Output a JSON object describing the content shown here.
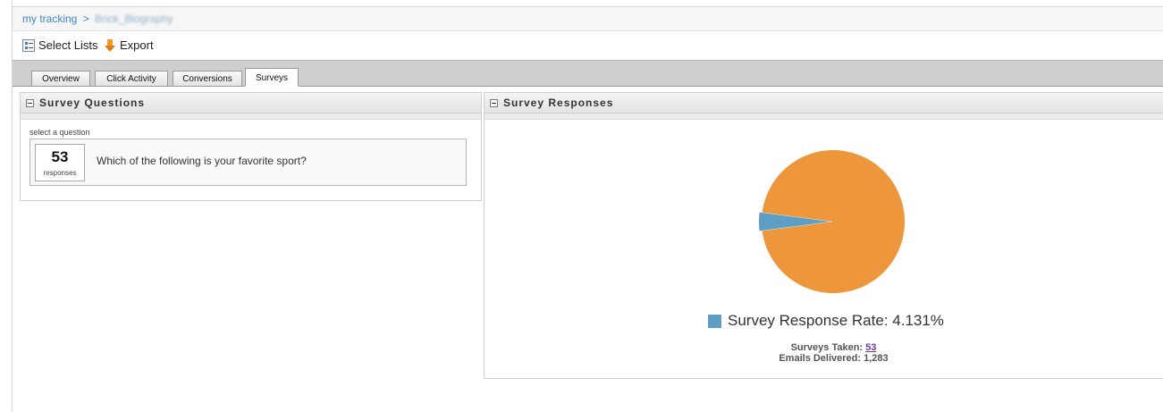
{
  "breadcrumb": {
    "root": "my tracking",
    "separator": ">",
    "current": "Brick_Biography"
  },
  "toolbar": {
    "select_lists": "Select Lists",
    "export": "Export"
  },
  "tabs": [
    {
      "label": "Overview",
      "active": false
    },
    {
      "label": "Click Activity",
      "active": false
    },
    {
      "label": "Conversions",
      "active": false
    },
    {
      "label": "Surveys",
      "active": true
    }
  ],
  "survey_questions": {
    "title": "Survey Questions",
    "select_label": "select a question",
    "question": {
      "response_count": "53",
      "response_label": "responses",
      "text": "Which of the following is your favorite sport?"
    }
  },
  "survey_responses": {
    "title": "Survey Responses",
    "legend_label": "Survey Response Rate: 4.131%",
    "surveys_taken_label": "Surveys Taken:",
    "surveys_taken_value": "53",
    "emails_delivered_label": "Emails Delivered:",
    "emails_delivered_value": "1,283"
  },
  "colors": {
    "response_slice": "#5c9ec5",
    "remaining_slice": "#ee963b",
    "link": "#3a87c8"
  },
  "chart_data": {
    "type": "pie",
    "slices": [
      {
        "name": "Survey Response Rate",
        "value": 4.131,
        "color": "#5c9ec5"
      },
      {
        "value": 95.869,
        "color": "#ee963b"
      }
    ],
    "legend": "bottom"
  }
}
